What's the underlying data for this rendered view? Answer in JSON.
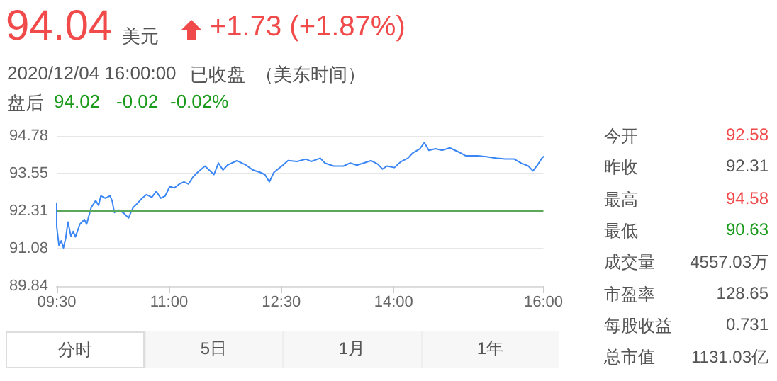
{
  "chart_data": [
    {
      "type": "other",
      "title": "94.04",
      "annotations": [
        "美元",
        "+1.73 (+1.87%)",
        "2020/12/04 16:00:00",
        "已收盘",
        "（美东时间）",
        "盘后",
        "94.02",
        "-0.02",
        "-0.02%"
      ]
    },
    {
      "type": "line",
      "xlim": [
        9.5,
        16
      ],
      "xticks": [
        {
          "value": 9.5,
          "label": "09:30"
        },
        {
          "value": 11,
          "label": "11:00"
        },
        {
          "value": 12.5,
          "label": "12:30"
        },
        {
          "value": 14,
          "label": "14:00"
        },
        {
          "value": 16,
          "label": "16:00"
        }
      ],
      "ylim": [
        89.84,
        94.78
      ],
      "yticks": [
        89.84,
        91.08,
        92.31,
        93.55,
        94.78
      ],
      "grid": "y",
      "marker": "none",
      "line_style": "solid",
      "ref_lines": [
        {
          "axis": "y",
          "value": 92.31,
          "color": "#5ba85b"
        }
      ],
      "series": [
        {
          "color": "#3a86f5",
          "x": [
            9.5,
            9.5,
            9.53,
            9.56,
            9.59,
            9.62,
            9.65,
            9.69,
            9.72,
            9.75,
            9.81,
            9.87,
            9.9,
            9.96,
            10.02,
            10.06,
            10.09,
            10.15,
            10.21,
            10.24,
            10.27,
            10.33,
            10.4,
            10.46,
            10.49,
            10.52,
            10.58,
            10.64,
            10.7,
            10.77,
            10.83,
            10.89,
            10.95,
            11.01,
            11.07,
            11.14,
            11.2,
            11.26,
            11.32,
            11.38,
            11.48,
            11.57,
            11.6,
            11.66,
            11.72,
            11.78,
            11.91,
            11.97,
            12.03,
            12.12,
            12.22,
            12.28,
            12.34,
            12.4,
            12.52,
            12.59,
            12.71,
            12.83,
            12.9,
            13.02,
            13.08,
            13.2,
            13.33,
            13.42,
            13.51,
            13.6,
            13.7,
            13.79,
            13.85,
            13.91,
            14.01,
            14.1,
            14.19,
            14.25,
            14.35,
            14.41,
            14.47,
            14.56,
            14.65,
            14.75,
            14.87,
            14.96,
            15.12,
            15.24,
            15.36,
            15.49,
            15.61,
            15.7,
            15.8,
            15.86,
            15.92,
            15.98,
            16
          ],
          "values": [
            92.57,
            91.8,
            91.18,
            91.33,
            91.1,
            91.41,
            91.95,
            91.49,
            91.64,
            91.46,
            91.88,
            92.03,
            91.88,
            92.42,
            92.65,
            92.5,
            92.81,
            92.73,
            92.81,
            92.65,
            92.26,
            92.34,
            92.23,
            92.08,
            92.26,
            92.42,
            92.57,
            92.73,
            92.85,
            92.76,
            92.96,
            92.73,
            92.81,
            93.12,
            93.07,
            93.2,
            93.27,
            93.2,
            93.43,
            93.58,
            93.79,
            93.58,
            93.51,
            93.89,
            93.66,
            93.82,
            93.97,
            93.89,
            93.82,
            93.66,
            93.58,
            93.51,
            93.27,
            93.58,
            93.82,
            93.97,
            93.94,
            94.02,
            93.94,
            94.05,
            93.89,
            93.79,
            93.79,
            93.89,
            93.82,
            93.89,
            93.97,
            93.85,
            93.69,
            93.79,
            93.74,
            93.94,
            94.05,
            94.21,
            94.36,
            94.56,
            94.31,
            94.36,
            94.31,
            94.39,
            94.25,
            94.13,
            94.13,
            94.1,
            94.05,
            94.02,
            94.02,
            93.89,
            93.79,
            93.63,
            93.82,
            94.05,
            94.1
          ]
        }
      ]
    },
    {
      "type": "other",
      "annotations": [
        "今开",
        "92.58",
        "昨收",
        "92.31",
        "最高",
        "94.58",
        "最低",
        "90.63",
        "成交量",
        "4557.03万",
        "市盈率",
        "128.65",
        "每股收益",
        "0.731",
        "总市值",
        "1131.03亿"
      ]
    },
    {
      "type": "other",
      "annotations": [
        "分时",
        "5日",
        "1月",
        "1年"
      ]
    }
  ]
}
